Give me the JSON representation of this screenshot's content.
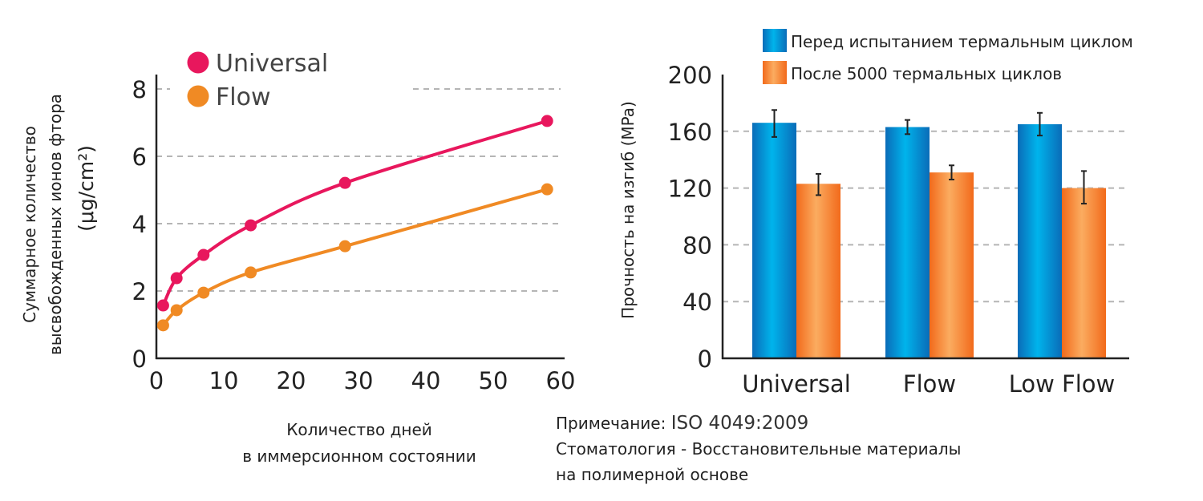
{
  "chart_data": [
    {
      "type": "line",
      "ylabel_lines": [
        "Суммарное количество",
        "высвобожденных ионов фтора",
        "(μg/cm²)"
      ],
      "xlabel_lines": [
        "Количество дней",
        "в иммерсионном состоянии"
      ],
      "xlim": [
        0,
        60
      ],
      "ylim": [
        0,
        8
      ],
      "xticks": [
        "0",
        "10",
        "20",
        "30",
        "40",
        "50",
        "60"
      ],
      "yticks": [
        "0",
        "2",
        "4",
        "6",
        "8"
      ],
      "grid": "horizontal dashed",
      "legend_placement": "top-left",
      "x": [
        1,
        3,
        7,
        14,
        28,
        58
      ],
      "series": [
        {
          "name": "Universal",
          "color": "#e8175d",
          "values": [
            1.57,
            2.38,
            3.07,
            3.95,
            5.21,
            7.05
          ]
        },
        {
          "name": "Flow",
          "color": "#f08a24",
          "values": [
            0.98,
            1.43,
            1.95,
            2.55,
            3.33,
            5.02
          ]
        }
      ]
    },
    {
      "type": "bar",
      "ylabel": "Прочность на изгиб (MPa)",
      "categories": [
        "Universal",
        "Flow",
        "Low Flow"
      ],
      "ylim": [
        0,
        200
      ],
      "yticks": [
        "0",
        "40",
        "80",
        "120",
        "160",
        "200"
      ],
      "grid": "horizontal dashed",
      "legend_placement": "top",
      "series": [
        {
          "name": "Перед испытанием термальным циклом",
          "color": "#0096dc",
          "values": [
            166,
            163,
            165
          ],
          "error_low": [
            156,
            158,
            157
          ],
          "error_high": [
            175,
            168,
            173
          ]
        },
        {
          "name": "После 5000 термальных циклов",
          "color": "#f5862c",
          "values": [
            123,
            131,
            120
          ],
          "error_low": [
            115,
            126,
            109
          ],
          "error_high": [
            130,
            136,
            132
          ]
        }
      ]
    }
  ],
  "note": {
    "label": "Примечание:",
    "standard": "ISO 4049:2009",
    "line2": "Стоматология - Восстановительные материалы",
    "line3": "на полимерной основе"
  }
}
